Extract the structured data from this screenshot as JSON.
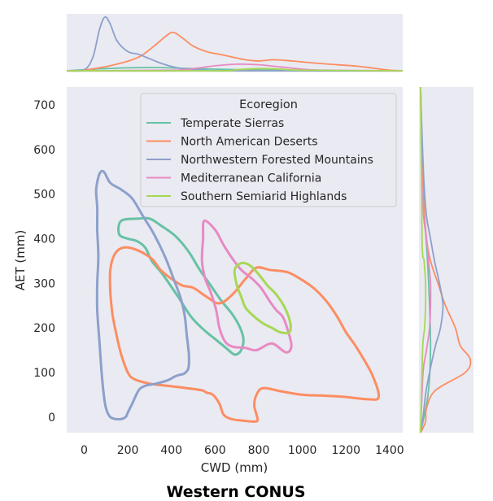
{
  "figure": {
    "title": "Western CONUS"
  },
  "chart_data": {
    "type": "kde-contour-jointplot",
    "xlabel": "CWD (mm)",
    "ylabel": "AET (mm)",
    "xlim": [
      -80,
      1460
    ],
    "ylim": [
      -35,
      740
    ],
    "xticks": [
      0,
      200,
      400,
      600,
      800,
      1000,
      1200,
      1400
    ],
    "yticks": [
      0,
      100,
      200,
      300,
      400,
      500,
      600,
      700
    ],
    "grid": false,
    "background": "#eaeaf2",
    "legend": {
      "title": "Ecoregion",
      "placement": "top-right",
      "entries": [
        "Temperate Sierras",
        "North American Deserts",
        "Northwestern Forested Mountains",
        "Mediterranean California",
        "Southern Semiarid Highlands"
      ]
    },
    "series": [
      {
        "name": "Temperate Sierras",
        "color": "#66c2a5",
        "contour": [
          [
            160,
            410
          ],
          [
            170,
            440
          ],
          [
            250,
            445
          ],
          [
            300,
            445
          ],
          [
            350,
            430
          ],
          [
            420,
            405
          ],
          [
            480,
            370
          ],
          [
            530,
            330
          ],
          [
            580,
            295
          ],
          [
            630,
            260
          ],
          [
            680,
            230
          ],
          [
            715,
            200
          ],
          [
            730,
            175
          ],
          [
            720,
            150
          ],
          [
            690,
            140
          ],
          [
            650,
            155
          ],
          [
            600,
            175
          ],
          [
            550,
            195
          ],
          [
            490,
            225
          ],
          [
            430,
            270
          ],
          [
            360,
            320
          ],
          [
            310,
            350
          ],
          [
            280,
            380
          ],
          [
            240,
            395
          ],
          [
            200,
            400
          ],
          [
            160,
            410
          ]
        ],
        "x_marginal": [
          [
            -80,
            0
          ],
          [
            100,
            0.004
          ],
          [
            300,
            0.006
          ],
          [
            500,
            0.004
          ],
          [
            700,
            0.002
          ],
          [
            900,
            0.001
          ],
          [
            1100,
            0
          ],
          [
            1460,
            0
          ]
        ],
        "y_marginal": [
          [
            -35,
            0
          ],
          [
            50,
            0.015
          ],
          [
            150,
            0.02
          ],
          [
            250,
            0.018
          ],
          [
            350,
            0.014
          ],
          [
            450,
            0.008
          ],
          [
            550,
            0.004
          ],
          [
            740,
            0
          ]
        ]
      },
      {
        "name": "North American Deserts",
        "color": "#fc8d62",
        "contour": [
          [
            120,
            330
          ],
          [
            140,
            365
          ],
          [
            180,
            380
          ],
          [
            240,
            375
          ],
          [
            310,
            355
          ],
          [
            350,
            330
          ],
          [
            400,
            310
          ],
          [
            450,
            295
          ],
          [
            500,
            290
          ],
          [
            560,
            270
          ],
          [
            620,
            255
          ],
          [
            680,
            275
          ],
          [
            740,
            310
          ],
          [
            790,
            335
          ],
          [
            850,
            330
          ],
          [
            930,
            325
          ],
          [
            990,
            310
          ],
          [
            1050,
            290
          ],
          [
            1110,
            260
          ],
          [
            1160,
            225
          ],
          [
            1200,
            190
          ],
          [
            1250,
            155
          ],
          [
            1320,
            95
          ],
          [
            1350,
            45
          ],
          [
            1300,
            40
          ],
          [
            1200,
            45
          ],
          [
            1100,
            48
          ],
          [
            1000,
            50
          ],
          [
            900,
            58
          ],
          [
            820,
            65
          ],
          [
            790,
            50
          ],
          [
            780,
            25
          ],
          [
            795,
            -5
          ],
          [
            780,
            -10
          ],
          [
            730,
            -8
          ],
          [
            680,
            -5
          ],
          [
            640,
            5
          ],
          [
            620,
            30
          ],
          [
            590,
            50
          ],
          [
            560,
            55
          ],
          [
            540,
            60
          ],
          [
            470,
            65
          ],
          [
            380,
            70
          ],
          [
            300,
            75
          ],
          [
            230,
            85
          ],
          [
            200,
            100
          ],
          [
            170,
            140
          ],
          [
            150,
            180
          ],
          [
            130,
            230
          ],
          [
            120,
            280
          ],
          [
            120,
            330
          ]
        ],
        "x_marginal": [
          [
            -80,
            0
          ],
          [
            0,
            0.001
          ],
          [
            150,
            0.012
          ],
          [
            250,
            0.025
          ],
          [
            320,
            0.045
          ],
          [
            380,
            0.065
          ],
          [
            410,
            0.07
          ],
          [
            450,
            0.06
          ],
          [
            500,
            0.045
          ],
          [
            560,
            0.035
          ],
          [
            620,
            0.03
          ],
          [
            680,
            0.025
          ],
          [
            740,
            0.02
          ],
          [
            800,
            0.018
          ],
          [
            870,
            0.02
          ],
          [
            950,
            0.018
          ],
          [
            1030,
            0.015
          ],
          [
            1120,
            0.012
          ],
          [
            1200,
            0.01
          ],
          [
            1260,
            0.008
          ],
          [
            1320,
            0.005
          ],
          [
            1400,
            0.001
          ],
          [
            1460,
            0
          ]
        ],
        "y_marginal": [
          [
            -35,
            0
          ],
          [
            -10,
            0.01
          ],
          [
            20,
            0.012
          ],
          [
            60,
            0.03
          ],
          [
            100,
            0.09
          ],
          [
            130,
            0.1
          ],
          [
            160,
            0.08
          ],
          [
            200,
            0.07
          ],
          [
            250,
            0.05
          ],
          [
            300,
            0.035
          ],
          [
            350,
            0.02
          ],
          [
            400,
            0.012
          ],
          [
            500,
            0.005
          ],
          [
            600,
            0.002
          ],
          [
            740,
            0
          ]
        ]
      },
      {
        "name": "Northwestern Forested Mountains",
        "color": "#8da0cb",
        "contour": [
          [
            90,
            550
          ],
          [
            120,
            525
          ],
          [
            170,
            510
          ],
          [
            220,
            490
          ],
          [
            270,
            450
          ],
          [
            320,
            410
          ],
          [
            370,
            360
          ],
          [
            410,
            310
          ],
          [
            440,
            270
          ],
          [
            460,
            230
          ],
          [
            470,
            185
          ],
          [
            480,
            140
          ],
          [
            478,
            110
          ],
          [
            460,
            98
          ],
          [
            440,
            95
          ],
          [
            420,
            92
          ],
          [
            380,
            82
          ],
          [
            330,
            75
          ],
          [
            280,
            70
          ],
          [
            250,
            60
          ],
          [
            220,
            30
          ],
          [
            200,
            10
          ],
          [
            190,
            0
          ],
          [
            160,
            -5
          ],
          [
            120,
            0
          ],
          [
            100,
            20
          ],
          [
            90,
            50
          ],
          [
            80,
            100
          ],
          [
            70,
            170
          ],
          [
            60,
            240
          ],
          [
            60,
            300
          ],
          [
            65,
            360
          ],
          [
            60,
            420
          ],
          [
            60,
            470
          ],
          [
            55,
            510
          ],
          [
            70,
            545
          ],
          [
            90,
            550
          ]
        ],
        "x_marginal": [
          [
            -80,
            0
          ],
          [
            0,
            0.002
          ],
          [
            40,
            0.025
          ],
          [
            70,
            0.075
          ],
          [
            95,
            0.098
          ],
          [
            120,
            0.085
          ],
          [
            150,
            0.055
          ],
          [
            200,
            0.035
          ],
          [
            250,
            0.03
          ],
          [
            300,
            0.022
          ],
          [
            350,
            0.014
          ],
          [
            400,
            0.008
          ],
          [
            450,
            0.004
          ],
          [
            550,
            0.001
          ],
          [
            700,
            0
          ],
          [
            1460,
            0
          ]
        ],
        "y_marginal": [
          [
            -35,
            0
          ],
          [
            0,
            0.005
          ],
          [
            50,
            0.01
          ],
          [
            100,
            0.018
          ],
          [
            160,
            0.03
          ],
          [
            200,
            0.04
          ],
          [
            250,
            0.045
          ],
          [
            300,
            0.038
          ],
          [
            350,
            0.028
          ],
          [
            400,
            0.02
          ],
          [
            450,
            0.012
          ],
          [
            520,
            0.007
          ],
          [
            600,
            0.004
          ],
          [
            700,
            0.001
          ],
          [
            740,
            0
          ]
        ]
      },
      {
        "name": "Mediterranean California",
        "color": "#e78ac3",
        "contour": [
          [
            550,
            440
          ],
          [
            600,
            420
          ],
          [
            640,
            385
          ],
          [
            680,
            355
          ],
          [
            720,
            330
          ],
          [
            770,
            310
          ],
          [
            810,
            290
          ],
          [
            850,
            260
          ],
          [
            880,
            240
          ],
          [
            910,
            225
          ],
          [
            930,
            200
          ],
          [
            950,
            160
          ],
          [
            925,
            145
          ],
          [
            860,
            165
          ],
          [
            790,
            150
          ],
          [
            740,
            155
          ],
          [
            680,
            158
          ],
          [
            645,
            170
          ],
          [
            620,
            200
          ],
          [
            605,
            240
          ],
          [
            580,
            280
          ],
          [
            555,
            310
          ],
          [
            540,
            350
          ],
          [
            545,
            400
          ],
          [
            550,
            440
          ]
        ],
        "x_marginal": [
          [
            -80,
            0
          ],
          [
            400,
            0.001
          ],
          [
            500,
            0.004
          ],
          [
            600,
            0.009
          ],
          [
            700,
            0.012
          ],
          [
            800,
            0.011
          ],
          [
            900,
            0.007
          ],
          [
            1000,
            0.003
          ],
          [
            1100,
            0.001
          ],
          [
            1460,
            0
          ]
        ],
        "y_marginal": [
          [
            -35,
            0
          ],
          [
            100,
            0.005
          ],
          [
            150,
            0.012
          ],
          [
            200,
            0.018
          ],
          [
            250,
            0.02
          ],
          [
            300,
            0.02
          ],
          [
            350,
            0.016
          ],
          [
            400,
            0.012
          ],
          [
            450,
            0.006
          ],
          [
            550,
            0.002
          ],
          [
            740,
            0
          ]
        ]
      },
      {
        "name": "Southern Semiarid Highlands",
        "color": "#a6d854",
        "contour": [
          [
            690,
            330
          ],
          [
            720,
            345
          ],
          [
            760,
            340
          ],
          [
            800,
            320
          ],
          [
            840,
            295
          ],
          [
            880,
            275
          ],
          [
            920,
            245
          ],
          [
            945,
            210
          ],
          [
            940,
            190
          ],
          [
            900,
            190
          ],
          [
            860,
            200
          ],
          [
            820,
            210
          ],
          [
            780,
            225
          ],
          [
            740,
            245
          ],
          [
            720,
            270
          ],
          [
            700,
            295
          ],
          [
            690,
            330
          ]
        ],
        "x_marginal": [
          [
            -80,
            0
          ],
          [
            600,
            0
          ],
          [
            700,
            0.002
          ],
          [
            800,
            0.004
          ],
          [
            900,
            0.003
          ],
          [
            1000,
            0.001
          ],
          [
            1460,
            0
          ]
        ],
        "y_marginal": [
          [
            -35,
            0
          ],
          [
            150,
            0.004
          ],
          [
            200,
            0.008
          ],
          [
            250,
            0.01
          ],
          [
            300,
            0.01
          ],
          [
            350,
            0.007
          ],
          [
            400,
            0.003
          ],
          [
            740,
            0
          ]
        ]
      }
    ]
  }
}
